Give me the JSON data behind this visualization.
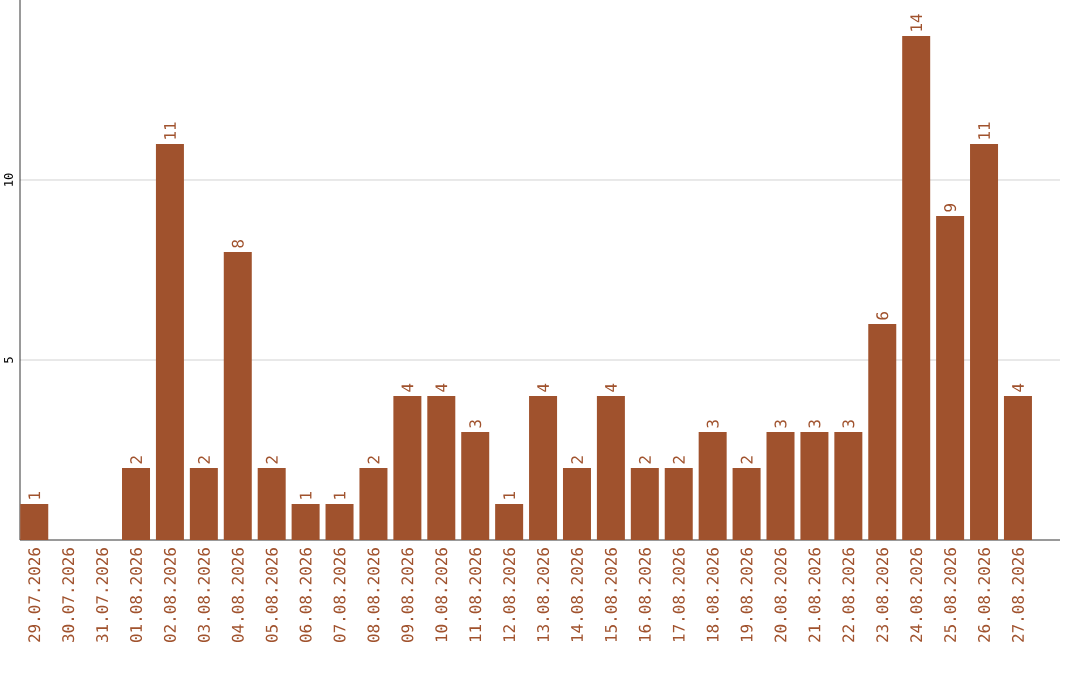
{
  "chart_data": {
    "type": "bar",
    "categories": [
      "29.07.2026",
      "30.07.2026",
      "31.07.2026",
      "01.08.2026",
      "02.08.2026",
      "03.08.2026",
      "04.08.2026",
      "05.08.2026",
      "06.08.2026",
      "07.08.2026",
      "08.08.2026",
      "09.08.2026",
      "10.08.2026",
      "11.08.2026",
      "12.08.2026",
      "13.08.2026",
      "14.08.2026",
      "15.08.2026",
      "16.08.2026",
      "17.08.2026",
      "18.08.2026",
      "19.08.2026",
      "20.08.2026",
      "21.08.2026",
      "22.08.2026",
      "23.08.2026",
      "24.08.2026",
      "25.08.2026",
      "26.08.2026",
      "27.08.2026"
    ],
    "values": [
      1,
      0,
      0,
      2,
      11,
      2,
      8,
      2,
      1,
      1,
      2,
      4,
      4,
      3,
      1,
      4,
      2,
      4,
      2,
      2,
      3,
      2,
      3,
      3,
      3,
      6,
      14,
      9,
      11,
      4
    ],
    "value_labels": [
      "1",
      null,
      null,
      "2",
      "11",
      "2",
      "8",
      "2",
      "1",
      "1",
      "2",
      "4",
      "4",
      "3",
      "1",
      "4",
      "2",
      "4",
      "2",
      "2",
      "3",
      "2",
      "3",
      "3",
      "3",
      "6",
      "14",
      "9",
      "11",
      "4"
    ],
    "color": "#a0522d",
    "ylim": [
      0,
      15
    ],
    "yticks": [
      5,
      10
    ],
    "grid": "y"
  }
}
